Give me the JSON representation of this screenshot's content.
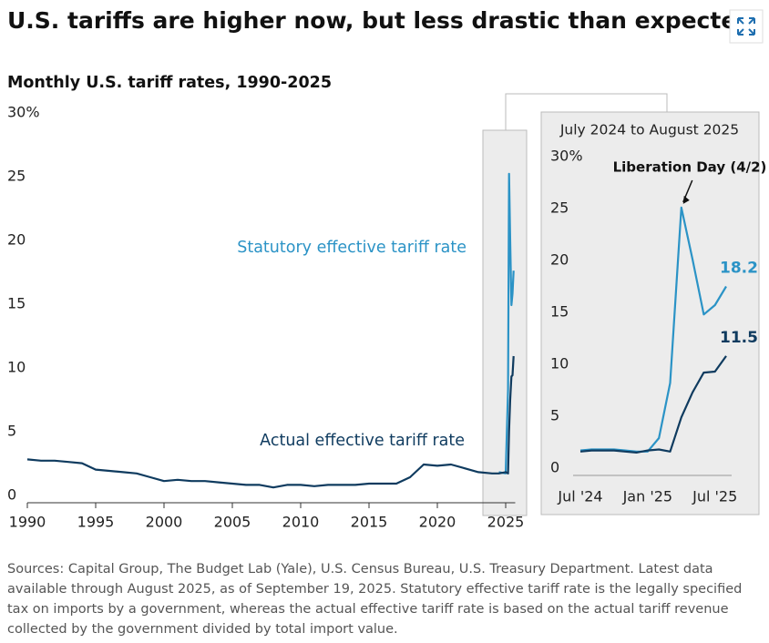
{
  "header": {
    "title": "U.S. tariffs are higher now, but less drastic than expected"
  },
  "source": "Sources: Capital Group, The Budget Lab (Yale), U.S. Census Bureau, U.S. Treasury Department. Latest data available through August 2025, as of September 19, 2025. Statutory effective tariff rate is the legally specified tax on imports by a government, whereas the actual effective tariff rate is based on the actual tariff revenue collected by the government divided by total import value.",
  "chart_data": [
    {
      "type": "line",
      "title": "Monthly U.S. tariff rates, 1990-2025",
      "x": [
        1990,
        1991,
        1992,
        1993,
        1994,
        1995,
        1996,
        1997,
        1998,
        1999,
        2000,
        2001,
        2002,
        2003,
        2004,
        2005,
        2006,
        2007,
        2008,
        2009,
        2010,
        2011,
        2012,
        2013,
        2014,
        2015,
        2016,
        2017,
        2018,
        2019,
        2020,
        2021,
        2022,
        2023,
        2024,
        2024.5,
        2025,
        2025.17,
        2025.25,
        2025.33,
        2025.42,
        2025.5,
        2025.58
      ],
      "series": [
        {
          "name": "Statutory effective tariff rate",
          "color": "#2b93c6",
          "values": [
            null,
            null,
            null,
            null,
            null,
            null,
            null,
            null,
            null,
            null,
            null,
            null,
            null,
            null,
            null,
            null,
            null,
            null,
            null,
            null,
            null,
            null,
            null,
            null,
            null,
            null,
            null,
            null,
            null,
            null,
            null,
            null,
            null,
            null,
            null,
            2.4,
            2.3,
            8.9,
            25.8,
            20.8,
            15.5,
            16.4,
            18.2
          ]
        },
        {
          "name": "Actual effective tariff rate",
          "color": "#0f3b5f",
          "values": [
            3.4,
            3.3,
            3.3,
            3.2,
            3.1,
            2.6,
            2.5,
            2.4,
            2.3,
            2.0,
            1.7,
            1.8,
            1.7,
            1.7,
            1.6,
            1.5,
            1.4,
            1.4,
            1.2,
            1.4,
            1.4,
            1.3,
            1.4,
            1.4,
            1.4,
            1.5,
            1.5,
            1.5,
            2.0,
            3.0,
            2.9,
            3.0,
            2.7,
            2.4,
            2.3,
            2.3,
            2.4,
            2.3,
            5.6,
            8.0,
            9.9,
            10.0,
            11.5
          ]
        }
      ],
      "xlim": [
        1990,
        2025.7
      ],
      "xticks": [
        1990,
        1995,
        2000,
        2005,
        2010,
        2015,
        2020,
        2025
      ],
      "ylim": [
        0,
        30
      ],
      "yticks": [
        0,
        5,
        10,
        15,
        20,
        25,
        {
          "value": 30,
          "label": "30%"
        }
      ]
    },
    {
      "type": "line",
      "title": "July 2024 to August 2025",
      "categories": [
        "Jul '24",
        null,
        null,
        null,
        null,
        null,
        "Jan '25",
        null,
        null,
        null,
        null,
        null,
        "Jul '25",
        null
      ],
      "series": [
        {
          "name": "Statutory effective tariff rate",
          "color": "#2b93c6",
          "values": [
            2.4,
            2.5,
            2.5,
            2.5,
            2.4,
            2.3,
            2.3,
            3.6,
            8.9,
            25.8,
            20.8,
            15.5,
            16.4,
            18.2
          ]
        },
        {
          "name": "Actual effective tariff rate",
          "color": "#0f3b5f",
          "values": [
            2.3,
            2.4,
            2.4,
            2.4,
            2.3,
            2.2,
            2.4,
            2.5,
            2.3,
            5.6,
            8.0,
            9.9,
            10.0,
            11.5
          ]
        }
      ],
      "ylim": [
        0,
        30
      ],
      "yticks": [
        0,
        5,
        10,
        15,
        20,
        25,
        {
          "value": 30,
          "label": "30%"
        }
      ],
      "annotations": [
        {
          "text": "Liberation Day (4/2)"
        }
      ]
    }
  ]
}
